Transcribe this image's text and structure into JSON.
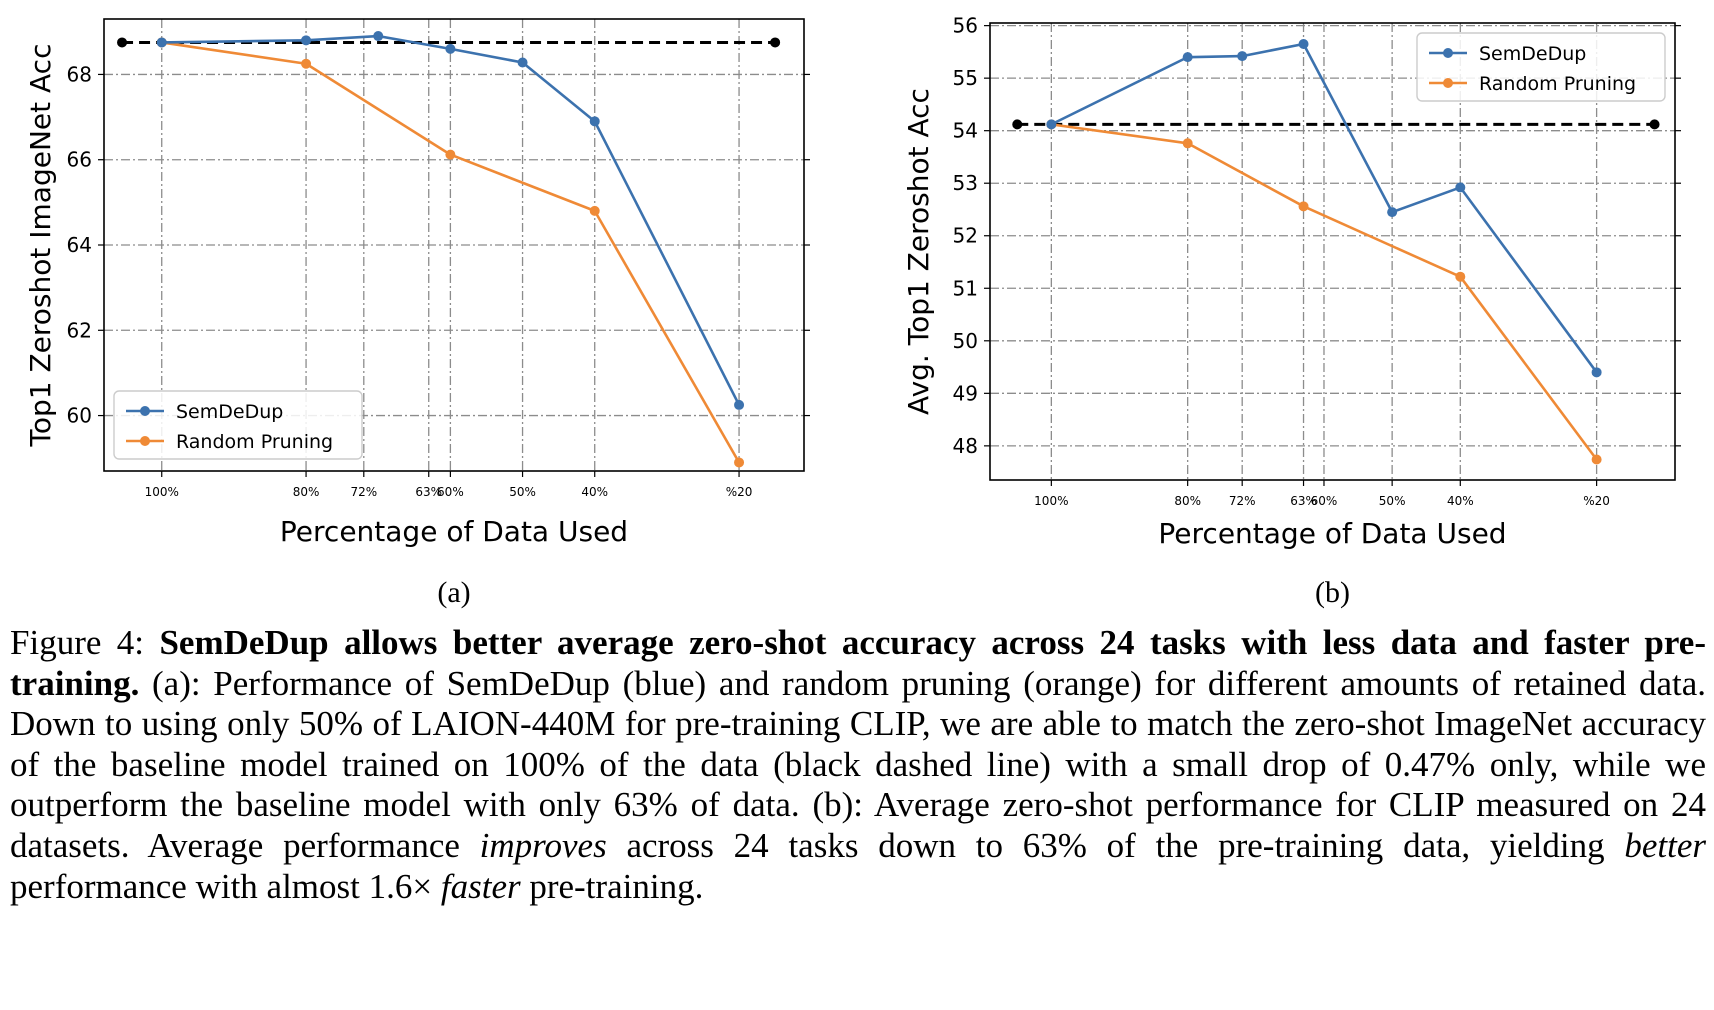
{
  "chart_data": [
    {
      "type": "line",
      "panel_label": "(a)",
      "xlabel": "Percentage of Data Used",
      "ylabel": "Top1 Zeroshot ImageNet Acc",
      "x": [
        100,
        80,
        72,
        63,
        60,
        50,
        40,
        20
      ],
      "x_tick_labels": [
        "100%",
        "80%",
        "72%",
        "63%",
        "60%",
        "50%",
        "40%",
        "%20"
      ],
      "xlim": [
        108,
        11
      ],
      "ylim": [
        58.7,
        69.3
      ],
      "y_ticks": [
        60,
        62,
        64,
        66,
        68
      ],
      "grid": true,
      "legend_position": "lower-left",
      "baseline": {
        "value": 68.75,
        "x_range": [
          105.5,
          15
        ],
        "color": "#000000",
        "style": "dashed"
      },
      "series": [
        {
          "name": "SemDeDup",
          "color": "#3c72ae",
          "x": [
            100,
            80,
            70,
            60,
            50,
            40,
            20
          ],
          "values": [
            68.75,
            68.8,
            68.9,
            68.6,
            68.28,
            66.9,
            60.25
          ]
        },
        {
          "name": "Random Pruning",
          "color": "#ef8a36",
          "x": [
            100,
            80,
            60,
            40,
            20
          ],
          "values": [
            68.75,
            68.25,
            66.12,
            64.8,
            58.9
          ]
        }
      ]
    },
    {
      "type": "line",
      "panel_label": "(b)",
      "xlabel": "Percentage of Data Used",
      "ylabel": "Avg. Top1 Zeroshot Acc",
      "x": [
        100,
        80,
        72,
        63,
        60,
        50,
        40,
        20
      ],
      "x_tick_labels": [
        "100%",
        "80%",
        "72%",
        "63%",
        "60%",
        "50%",
        "40%",
        "%20"
      ],
      "xlim": [
        109,
        8.5
      ],
      "ylim": [
        47.35,
        56.05
      ],
      "y_ticks": [
        48,
        49,
        50,
        51,
        52,
        53,
        54,
        55,
        56
      ],
      "grid": true,
      "legend_position": "upper-right",
      "baseline": {
        "value": 54.12,
        "x_range": [
          105,
          11.5
        ],
        "color": "#000000",
        "style": "dashed"
      },
      "series": [
        {
          "name": "SemDeDup",
          "color": "#3c72ae",
          "x": [
            100,
            80,
            72,
            63,
            50,
            40,
            20
          ],
          "values": [
            54.12,
            55.4,
            55.42,
            55.65,
            52.45,
            52.92,
            49.4
          ]
        },
        {
          "name": "Random Pruning",
          "color": "#ef8a36",
          "x": [
            100,
            80,
            63,
            40,
            20
          ],
          "values": [
            54.12,
            53.76,
            52.56,
            51.22,
            47.74
          ]
        }
      ]
    }
  ],
  "caption": {
    "lead": "Figure 4: ",
    "bold": "SemDeDup allows better average zero-shot accuracy across 24 tasks with less data and faster pre-training.",
    "part1": " (a): Performance of SemDeDup (blue) and random pruning (orange) for different amounts of retained data. Down to using only 50% of LAION-440M for pre-training CLIP, we are able to match the zero-shot ImageNet accuracy of the baseline model trained on 100% of the data (black dashed line) with a small drop of 0.47% only, while we outperform the baseline model with only 63% of data. (b): Average zero-shot performance for CLIP measured on 24 datasets. Average performance ",
    "italic1": "improves",
    "part2": " across 24 tasks down to 63% of the pre-training data, yielding ",
    "italic2": "better",
    "part3": " performance with almost 1.6× ",
    "italic3": "faster",
    "part4": " pre-training."
  }
}
